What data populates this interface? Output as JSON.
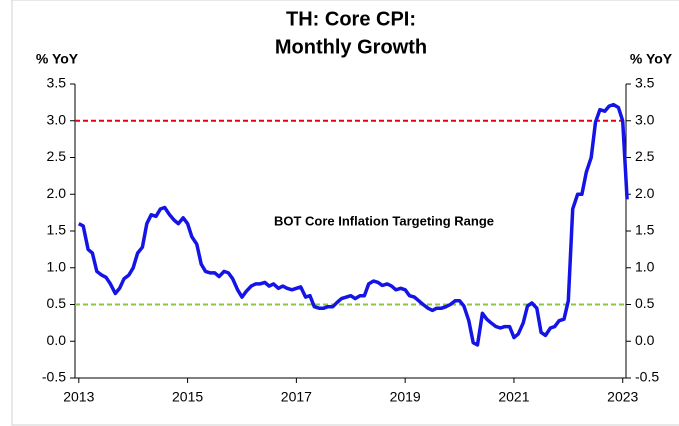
{
  "chart_data": {
    "type": "line",
    "title": [
      "TH: Core CPI:",
      "Monthly Growth"
    ],
    "y_label": "% YoY",
    "y2_label": "% YoY",
    "annotation": {
      "text": "BOT Core Inflation Targeting Range",
      "color": "#e8000b"
    },
    "reference_lines": [
      {
        "value": 3,
        "color": "#e8000b"
      },
      {
        "value": 0.5,
        "color": "#8dc63f"
      }
    ],
    "xlim": [
      2012.93,
      2023.06
    ],
    "xticks": [
      2013,
      2015,
      2017,
      2019,
      2021,
      2023
    ],
    "ylim": [
      -0.5,
      3.5
    ],
    "yticks": [
      -0.5,
      {
        "value": 0,
        "label": "0.0"
      },
      0.5,
      {
        "value": 1,
        "label": "1.0"
      },
      1.5,
      {
        "value": 2,
        "label": "2.0"
      },
      2.5,
      {
        "value": 3,
        "label": "3.0"
      },
      3.5
    ],
    "y2lim": [
      -0.5,
      3.5
    ],
    "y2ticks": [
      -0.5,
      {
        "value": 0,
        "label": "0.0"
      },
      0.5,
      {
        "value": 1,
        "label": "1.0"
      },
      1.5,
      {
        "value": 2,
        "label": "2.0"
      },
      2.5,
      {
        "value": 3,
        "label": "3.0"
      },
      3.5
    ],
    "x": [
      2013,
      2013.08,
      2013.17,
      2013.25,
      2013.33,
      2013.42,
      2013.5,
      2013.58,
      2013.67,
      2013.75,
      2013.83,
      2013.92,
      2014,
      2014.08,
      2014.17,
      2014.25,
      2014.33,
      2014.42,
      2014.5,
      2014.58,
      2014.67,
      2014.75,
      2014.83,
      2014.92,
      2015,
      2015.08,
      2015.17,
      2015.25,
      2015.33,
      2015.42,
      2015.5,
      2015.58,
      2015.67,
      2015.75,
      2015.83,
      2015.92,
      2016,
      2016.08,
      2016.17,
      2016.25,
      2016.33,
      2016.42,
      2016.5,
      2016.58,
      2016.67,
      2016.75,
      2016.83,
      2016.92,
      2017,
      2017.08,
      2017.17,
      2017.25,
      2017.33,
      2017.42,
      2017.5,
      2017.58,
      2017.67,
      2017.75,
      2017.83,
      2017.92,
      2018,
      2018.08,
      2018.17,
      2018.25,
      2018.33,
      2018.42,
      2018.5,
      2018.58,
      2018.67,
      2018.75,
      2018.83,
      2018.92,
      2019,
      2019.08,
      2019.17,
      2019.25,
      2019.33,
      2019.42,
      2019.5,
      2019.58,
      2019.67,
      2019.75,
      2019.83,
      2019.92,
      2020,
      2020.08,
      2020.17,
      2020.25,
      2020.33,
      2020.42,
      2020.5,
      2020.58,
      2020.67,
      2020.75,
      2020.83,
      2020.92,
      2021,
      2021.08,
      2021.17,
      2021.25,
      2021.33,
      2021.42,
      2021.5,
      2021.58,
      2021.67,
      2021.75,
      2021.83,
      2021.92,
      2022,
      2022.08,
      2022.17,
      2022.25,
      2022.33,
      2022.42,
      2022.5,
      2022.58,
      2022.67,
      2022.75,
      2022.83,
      2022.92,
      2023,
      2023.08
    ],
    "series": [
      {
        "name": "Core CPI",
        "color": "#1414e6",
        "values": [
          1.6,
          1.57,
          1.25,
          1.2,
          0.95,
          0.9,
          0.87,
          0.78,
          0.65,
          0.72,
          0.85,
          0.9,
          1.0,
          1.2,
          1.28,
          1.6,
          1.72,
          1.7,
          1.8,
          1.82,
          1.72,
          1.65,
          1.6,
          1.68,
          1.6,
          1.42,
          1.32,
          1.05,
          0.95,
          0.93,
          0.93,
          0.88,
          0.95,
          0.93,
          0.85,
          0.7,
          0.6,
          0.68,
          0.75,
          0.78,
          0.78,
          0.8,
          0.75,
          0.78,
          0.72,
          0.75,
          0.72,
          0.7,
          0.72,
          0.74,
          0.6,
          0.62,
          0.47,
          0.45,
          0.45,
          0.47,
          0.47,
          0.53,
          0.58,
          0.6,
          0.62,
          0.58,
          0.62,
          0.62,
          0.78,
          0.82,
          0.8,
          0.76,
          0.78,
          0.75,
          0.7,
          0.72,
          0.7,
          0.62,
          0.6,
          0.55,
          0.5,
          0.45,
          0.42,
          0.45,
          0.45,
          0.47,
          0.5,
          0.55,
          0.55,
          0.48,
          0.28,
          -0.02,
          -0.05,
          0.38,
          0.3,
          0.25,
          0.2,
          0.18,
          0.2,
          0.2,
          0.05,
          0.1,
          0.25,
          0.48,
          0.52,
          0.45,
          0.12,
          0.08,
          0.18,
          0.2,
          0.28,
          0.3,
          0.55,
          1.8,
          2.0,
          2.0,
          2.3,
          2.5,
          2.98,
          3.15,
          3.13,
          3.2,
          3.22,
          3.18,
          3.0,
          1.93
        ]
      }
    ]
  }
}
